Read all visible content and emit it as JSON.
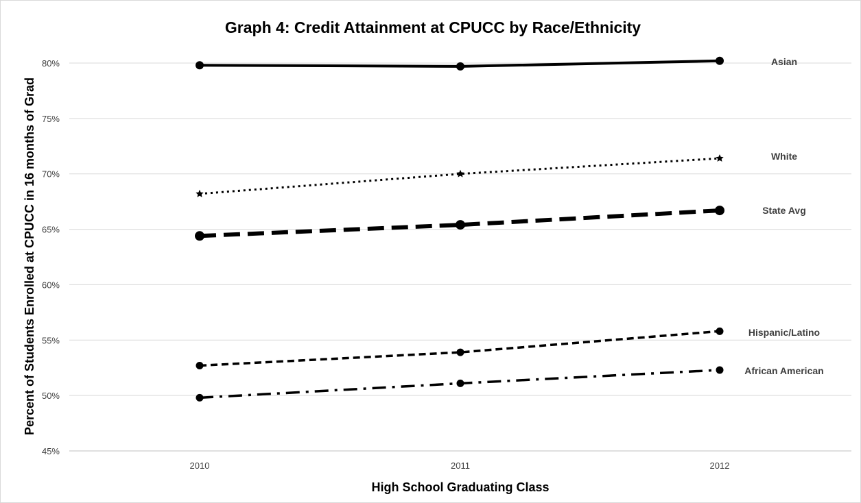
{
  "chart_data": {
    "type": "line",
    "title": "Graph 4: Credit Attainment at CPUCC by Race/Ethnicity",
    "xlabel": "High School Graduating Class",
    "ylabel": "Percent of Students Enrolled at CPUCC in 16 months of Grad",
    "x": [
      "2010",
      "2011",
      "2012"
    ],
    "ylim": [
      0.45,
      0.8
    ],
    "yticks": [
      {
        "value": 0.45,
        "label": "45%"
      },
      {
        "value": 0.5,
        "label": "50%"
      },
      {
        "value": 0.55,
        "label": "55%"
      },
      {
        "value": 0.6,
        "label": "60%"
      },
      {
        "value": 0.65,
        "label": "65%"
      },
      {
        "value": 0.7,
        "label": "70%"
      },
      {
        "value": 0.75,
        "label": "75%"
      },
      {
        "value": 0.8,
        "label": "80%"
      }
    ],
    "grid": true,
    "legend": "labels at end of each line",
    "series": [
      {
        "name": "Asian",
        "values": [
          0.798,
          0.797,
          0.802
        ],
        "line_style": "solid",
        "marker": "circle",
        "color": "#000000"
      },
      {
        "name": "White",
        "values": [
          0.682,
          0.7,
          0.714
        ],
        "line_style": "dotted",
        "marker": "star",
        "color": "#000000"
      },
      {
        "name": "State Avg",
        "values": [
          0.644,
          0.654,
          0.667
        ],
        "line_style": "long-dash",
        "marker": "circle",
        "color": "#000000"
      },
      {
        "name": "Hispanic/Latino",
        "values": [
          0.527,
          0.539,
          0.558
        ],
        "line_style": "dashed",
        "marker": "circle",
        "color": "#000000"
      },
      {
        "name": "African American",
        "values": [
          0.498,
          0.511,
          0.523
        ],
        "line_style": "dash-dot",
        "marker": "circle",
        "color": "#000000"
      }
    ]
  }
}
